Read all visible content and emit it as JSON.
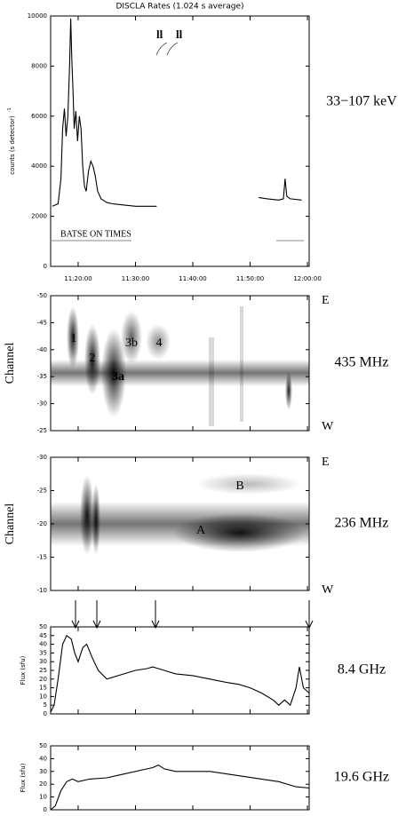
{
  "chart_data": [
    {
      "type": "line",
      "title": "DISCLA Rates (1.024 s average)",
      "y_label": "counts (s detector)",
      "y_label_exponent": "-1",
      "band": "33−107 keV",
      "annotation": "BATSE ON TIMES",
      "marks": [
        "ll",
        "ll"
      ],
      "color": "#000000",
      "xlim": [
        15.2,
        60.3
      ],
      "xticks": [
        {
          "value": 20,
          "label": "11:20:00"
        },
        {
          "value": 30,
          "label": "11:30:00"
        },
        {
          "value": 40,
          "label": "11:40:00"
        },
        {
          "value": 50,
          "label": "11:50:00"
        },
        {
          "value": 60,
          "label": "12:00:00"
        }
      ],
      "ylim": [
        0,
        10000
      ],
      "yticks": [
        0,
        2000,
        4000,
        6000,
        8000,
        10000
      ],
      "x": [
        15.5,
        16,
        16.5,
        17,
        17.3,
        17.6,
        17.9,
        18.2,
        18.5,
        18.7,
        18.9,
        19.1,
        19.3,
        19.6,
        19.9,
        20.2,
        20.5,
        20.8,
        21.1,
        21.4,
        21.8,
        22.2,
        22.6,
        23.0,
        23.4,
        24,
        25,
        26,
        28,
        30,
        32,
        33.7,
        null,
        51.5,
        53,
        55,
        55.8,
        56.1,
        56.4,
        57,
        59
      ],
      "values": [
        2400,
        2450,
        2500,
        3500,
        5500,
        6300,
        5200,
        6000,
        8000,
        9900,
        8200,
        7000,
        5500,
        6200,
        5000,
        6000,
        5500,
        4000,
        3200,
        3000,
        3800,
        4200,
        4000,
        3600,
        3000,
        2700,
        2550,
        2500,
        2450,
        2400,
        2400,
        2400,
        null,
        2750,
        2700,
        2650,
        2700,
        3500,
        2800,
        2700,
        2650
      ]
    },
    {
      "type": "spectrogram",
      "y_label": "Channel",
      "band": "435 MHz",
      "top_label": "E",
      "bottom_label": "W",
      "invert_y": true,
      "ylim": [
        -50,
        -25
      ],
      "yticks": [
        -50,
        -45,
        -40,
        -35,
        -30,
        -25
      ],
      "labels": [
        "1",
        "2",
        "3a",
        "3b",
        "4"
      ]
    },
    {
      "type": "spectrogram",
      "y_label": "Channel",
      "band": "236 MHz",
      "top_label": "E",
      "bottom_label": "W",
      "invert_y": true,
      "ylim": [
        -30,
        -10
      ],
      "yticks": [
        -30,
        -25,
        -20,
        -15,
        -10
      ],
      "labels": [
        "A",
        "B"
      ]
    },
    {
      "type": "line",
      "y_label": "Flux (sfu)",
      "band": "8.4 GHz",
      "color": "#000000",
      "xlim": [
        15.2,
        60.3
      ],
      "ylim": [
        0,
        50
      ],
      "yticks": [
        0,
        5,
        10,
        15,
        20,
        25,
        30,
        35,
        40,
        45,
        50
      ],
      "x": [
        15.2,
        15.8,
        16.5,
        17.3,
        18,
        18.8,
        19.4,
        20,
        20.8,
        21.5,
        22.5,
        23.5,
        25,
        26,
        28,
        30,
        32,
        33,
        34,
        35,
        37,
        40,
        43,
        46,
        48,
        50,
        52,
        54,
        55,
        56,
        57,
        58,
        58.6,
        59.3,
        60.3
      ],
      "values": [
        1,
        5,
        20,
        40,
        45,
        43,
        35,
        30,
        38,
        40,
        32,
        25,
        20,
        21,
        23,
        25,
        26,
        27,
        26,
        25,
        23,
        22,
        20,
        18,
        17,
        15,
        12,
        8,
        5,
        8,
        5,
        15,
        27,
        15,
        12
      ]
    },
    {
      "type": "line",
      "y_label": "Flux (sfu)",
      "band": "19.6 GHz",
      "color": "#000000",
      "xlim": [
        15.2,
        60.3
      ],
      "ylim": [
        0,
        50
      ],
      "yticks": [
        0,
        10,
        20,
        30,
        40,
        50
      ],
      "x": [
        15.2,
        16,
        17,
        18,
        19,
        20,
        22,
        25,
        28,
        31,
        33,
        34,
        35,
        37,
        40,
        43,
        46,
        49,
        52,
        55,
        58,
        60.3
      ],
      "values": [
        0,
        3,
        15,
        22,
        24,
        22,
        24,
        25,
        28,
        31,
        33,
        35,
        32,
        30,
        30,
        30,
        28,
        26,
        24,
        22,
        18,
        17
      ]
    }
  ]
}
